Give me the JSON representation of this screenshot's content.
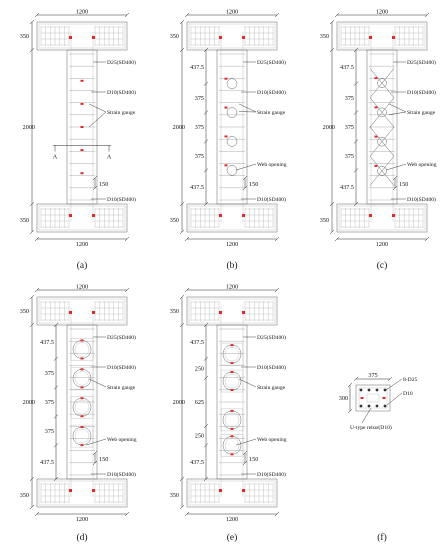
{
  "dims": {
    "width": "1200",
    "top_flange": "350",
    "bottom_flange": "350",
    "height": "2000",
    "spacing_150": "150",
    "end_437": "437.5",
    "mid_375": "375",
    "mid_250": "250",
    "mid_625": "625"
  },
  "labels": {
    "longitudinal": "D25(SD400)",
    "transverse": "D10(SD400)",
    "gauge": "Strain gauge",
    "opening": "Web opening",
    "section_mark": "A"
  },
  "section": {
    "width": "375",
    "height": "300",
    "main_bars": "8-D25",
    "tie": "D10",
    "stirrup": "U-type rebar(D10)"
  },
  "captions": [
    "(a)",
    "(b)",
    "(c)",
    "(d)",
    "(e)",
    "(f)"
  ],
  "colors": {
    "gauge": "#e0282a",
    "line": "#666666"
  }
}
